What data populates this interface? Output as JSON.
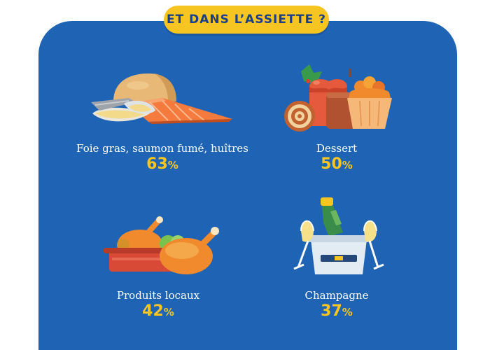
{
  "title": "ET DANS L’ASSIETTE ?",
  "items": [
    {
      "label": "Foie gras, saumon fumé, huîtres",
      "value": "63",
      "unit": "%",
      "icon": "seafood-plate-icon"
    },
    {
      "label": "Dessert",
      "value": "50",
      "unit": "%",
      "icon": "dessert-icon"
    },
    {
      "label": "Produits locaux",
      "value": "42",
      "unit": "%",
      "icon": "roast-chicken-icon"
    },
    {
      "label": "Champagne",
      "value": "37",
      "unit": "%",
      "icon": "champagne-icon"
    }
  ],
  "colors": {
    "panel": "#1f64b4",
    "accent": "#f6c522",
    "title_text": "#1a3f86",
    "label_text": "#ffffff"
  }
}
